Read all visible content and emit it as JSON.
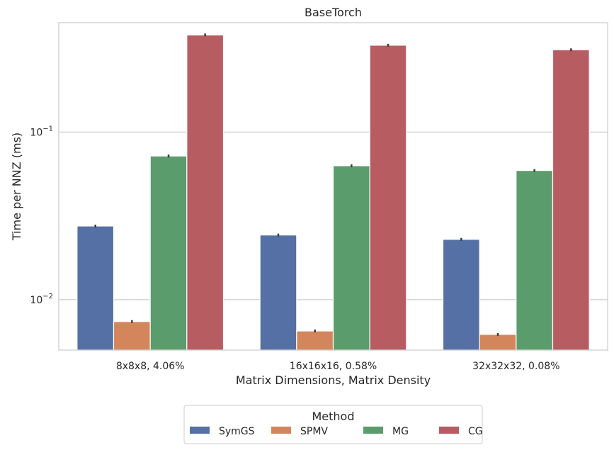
{
  "chart_data": {
    "type": "bar",
    "title": "BaseTorch",
    "xlabel": "Matrix Dimensions, Matrix Density",
    "ylabel": "Time per NNZ (ms)",
    "yscale": "log",
    "ylim": [
      0.005,
      0.45
    ],
    "yticks": [
      {
        "value": 0.1,
        "base": "10",
        "exp": "−1"
      },
      {
        "value": 0.01,
        "base": "10",
        "exp": "−2"
      }
    ],
    "grid": "horizontal",
    "categories": [
      "8x8x8, 4.06%",
      "16x16x16, 0.58%",
      "32x32x32, 0.08%"
    ],
    "series": [
      {
        "name": "SymGS",
        "color": "#5470a4",
        "values": [
          0.0275,
          0.0243,
          0.0229
        ]
      },
      {
        "name": "SPMV",
        "color": "#d3855c",
        "values": [
          0.0074,
          0.0065,
          0.0062
        ]
      },
      {
        "name": "MG",
        "color": "#5b9c6c",
        "values": [
          0.072,
          0.063,
          0.059
        ]
      },
      {
        "name": "CG",
        "color": "#b75c61",
        "values": [
          0.38,
          0.33,
          0.31
        ]
      }
    ],
    "legend": {
      "title": "Method",
      "position": "bottom-center"
    }
  }
}
